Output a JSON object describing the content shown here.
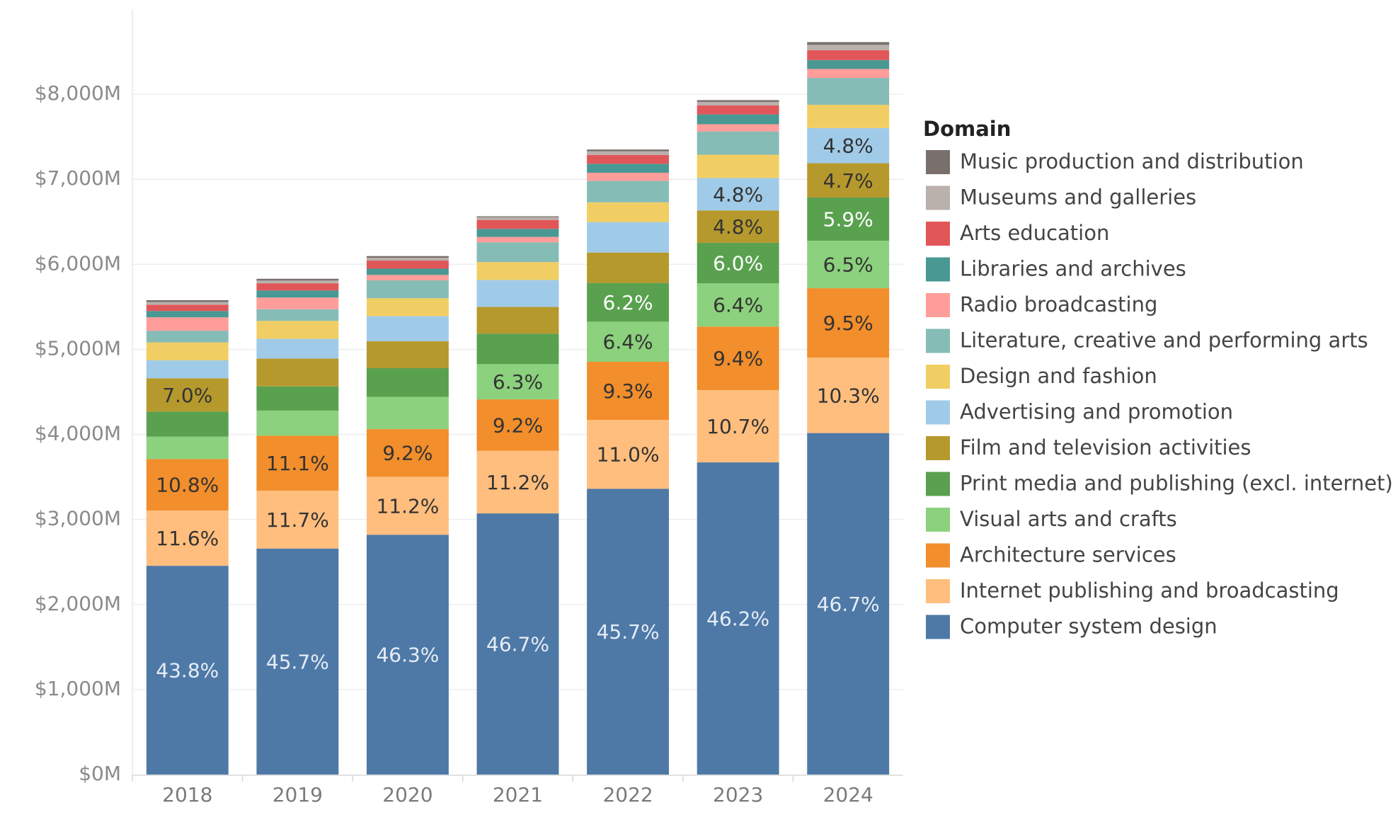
{
  "chart_data": {
    "type": "stacked_bar",
    "legend_title": "Domain",
    "legend_position": "right",
    "categories": [
      "2018",
      "2019",
      "2020",
      "2021",
      "2022",
      "2023",
      "2024"
    ],
    "ylim": [
      0,
      9000
    ],
    "yticks": [
      {
        "value": 0,
        "label": "$0M"
      },
      {
        "value": 1000,
        "label": "$1,000M"
      },
      {
        "value": 2000,
        "label": "$2,000M"
      },
      {
        "value": 3000,
        "label": "$3,000M"
      },
      {
        "value": 4000,
        "label": "$4,000M"
      },
      {
        "value": 5000,
        "label": "$5,000M"
      },
      {
        "value": 6000,
        "label": "$6,000M"
      },
      {
        "value": 7000,
        "label": "$7,000M"
      },
      {
        "value": 8000,
        "label": "$8,000M"
      }
    ],
    "grid": true,
    "series": [
      {
        "name": "Computer system design",
        "color": "#4e79a7",
        "label_color": "#e6edf5",
        "values": [
          2455,
          2658,
          2820,
          3071,
          3361,
          3671,
          4016
        ],
        "share_labels": [
          "43.8%",
          "45.7%",
          "46.3%",
          "46.7%",
          "45.7%",
          "46.2%",
          "46.7%"
        ]
      },
      {
        "name": "Internet publishing and broadcasting",
        "color": "#ffbe7d",
        "label_color": "#333333",
        "values": [
          650,
          681,
          682,
          736,
          809,
          850,
          886
        ],
        "share_labels": [
          "11.6%",
          "11.7%",
          "11.2%",
          "11.2%",
          "11.0%",
          "10.7%",
          "10.3%"
        ]
      },
      {
        "name": "Architecture services",
        "color": "#f28e2b",
        "label_color": "#333333",
        "values": [
          605,
          646,
          560,
          605,
          684,
          747,
          817
        ],
        "share_labels": [
          "10.8%",
          "11.1%",
          "9.2%",
          "9.2%",
          "9.3%",
          "9.4%",
          "9.5%"
        ]
      },
      {
        "name": "Visual arts and crafts",
        "color": "#8cd17d",
        "label_color": "#333333",
        "values": [
          263,
          295,
          380,
          414,
          471,
          508,
          559
        ],
        "share_labels": [
          null,
          null,
          null,
          "6.3%",
          "6.4%",
          "6.4%",
          "6.5%"
        ]
      },
      {
        "name": "Print media and publishing (excl. internet)",
        "color": "#59a14f",
        "label_color": "#ffffff",
        "values": [
          295,
          285,
          337,
          358,
          456,
          477,
          507
        ],
        "share_labels": [
          null,
          null,
          null,
          null,
          "6.2%",
          "6.0%",
          "5.9%"
        ]
      },
      {
        "name": "Film and television activities",
        "color": "#b6992d",
        "label_color": "#333333",
        "values": [
          392,
          327,
          316,
          316,
          358,
          381,
          404
        ],
        "share_labels": [
          "7.0%",
          null,
          null,
          null,
          null,
          "4.8%",
          "4.7%"
        ]
      },
      {
        "name": "Advertising and promotion",
        "color": "#a0cbe8",
        "label_color": "#333333",
        "values": [
          211,
          232,
          295,
          316,
          358,
          381,
          413
        ],
        "share_labels": [
          null,
          null,
          null,
          null,
          null,
          "4.8%",
          "4.8%"
        ]
      },
      {
        "name": "Design and fashion",
        "color": "#f1ce63",
        "values": [
          211,
          211,
          211,
          211,
          232,
          274,
          274
        ]
      },
      {
        "name": "Literature, creative and performing arts",
        "color": "#86bcb6",
        "values": [
          137,
          137,
          211,
          232,
          253,
          274,
          316
        ]
      },
      {
        "name": "Radio broadcasting",
        "color": "#ff9d9a",
        "values": [
          158,
          137,
          63,
          63,
          95,
          84,
          105
        ]
      },
      {
        "name": "Libraries and archives",
        "color": "#499894",
        "values": [
          74,
          84,
          74,
          95,
          105,
          116,
          105
        ]
      },
      {
        "name": "Arts education",
        "color": "#e15759",
        "values": [
          74,
          84,
          95,
          105,
          105,
          105,
          116
        ]
      },
      {
        "name": "Museums and galleries",
        "color": "#bab0ac",
        "values": [
          32,
          32,
          32,
          32,
          42,
          42,
          63
        ]
      },
      {
        "name": "Music production and distribution",
        "color": "#79706e",
        "values": [
          21,
          21,
          21,
          11,
          21,
          21,
          32
        ]
      }
    ]
  }
}
